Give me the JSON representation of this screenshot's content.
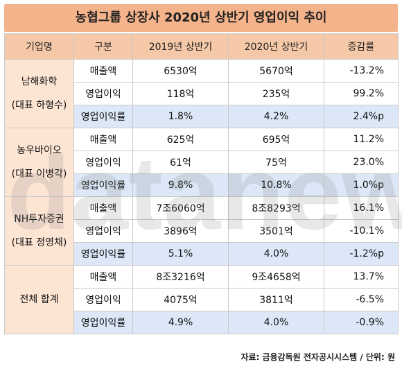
{
  "title": "농협그룹 상장사 2020년 상반기 영업이익 추이",
  "headers": [
    "기업명",
    "구분",
    "2019년 상반기",
    "2020년 상반기",
    "증감률"
  ],
  "companies": [
    {
      "name": "남해화학",
      "ceo": "(대표 하형수)",
      "rows": [
        {
          "label": "매출액",
          "y2019": "6530억",
          "y2020": "5670억",
          "change": "-13.2%"
        },
        {
          "label": "영업이익",
          "y2019": "118억",
          "y2020": "235억",
          "change": "99.2%"
        },
        {
          "label": "영업이익률",
          "y2019": "1.8%",
          "y2020": "4.2%",
          "change": "2.4%p"
        }
      ]
    },
    {
      "name": "농우바이오",
      "ceo": "(대표 이병각)",
      "rows": [
        {
          "label": "매출액",
          "y2019": "625억",
          "y2020": "695억",
          "change": "11.2%"
        },
        {
          "label": "영업이익",
          "y2019": "61억",
          "y2020": "75억",
          "change": "23.0%"
        },
        {
          "label": "영업이익률",
          "y2019": "9.8%",
          "y2020": "10.8%",
          "change": "1.0%p"
        }
      ]
    },
    {
      "name": "NH투자증권",
      "ceo": "(대표 정영채)",
      "rows": [
        {
          "label": "매출액",
          "y2019": "7조6060억",
          "y2020": "8조8293억",
          "change": "16.1%"
        },
        {
          "label": "영업이익",
          "y2019": "3896억",
          "y2020": "3501억",
          "change": "-10.1%"
        },
        {
          "label": "영업이익률",
          "y2019": "5.1%",
          "y2020": "4.0%",
          "change": "-1.2%p"
        }
      ]
    },
    {
      "name": "전체 합계",
      "ceo": "",
      "rows": [
        {
          "label": "매출액",
          "y2019": "8조3216억",
          "y2020": "9조4658억",
          "change": "13.7%"
        },
        {
          "label": "영업이익",
          "y2019": "4075억",
          "y2020": "3811억",
          "change": "-6.5%"
        },
        {
          "label": "영업이익률",
          "y2019": "4.9%",
          "y2020": "4.0%",
          "change": "-0.9%"
        }
      ]
    }
  ],
  "source": "자료: 금융감독원 전자공시시스템 / 단위: 원",
  "watermark": "datanews"
}
